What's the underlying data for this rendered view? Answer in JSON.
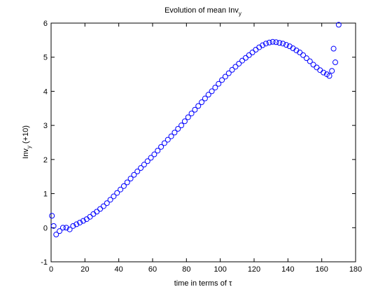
{
  "chart_data": {
    "type": "scatter",
    "title": "Evolution of mean Inv",
    "title_subscript": "y",
    "xlabel": "time in terms of τ",
    "ylabel": "Inv",
    "ylabel_subscript": "y",
    "ylabel_suffix": " (+10)",
    "marker_color": "#0000ff",
    "xlim": [
      0,
      180
    ],
    "xticks": [
      0,
      20,
      40,
      60,
      80,
      100,
      120,
      140,
      160,
      180
    ],
    "ylim": [
      -1,
      6
    ],
    "yticks": [
      -1,
      0,
      1,
      2,
      3,
      4,
      5,
      6
    ],
    "x": [
      0.5,
      1.5,
      3,
      5,
      7,
      9,
      11,
      13,
      15,
      17,
      19,
      21,
      23,
      25,
      27,
      29,
      31,
      33,
      35,
      37,
      39,
      41,
      43,
      45,
      47,
      49,
      51,
      53,
      55,
      57,
      59,
      61,
      63,
      65,
      67,
      69,
      71,
      73,
      75,
      77,
      79,
      81,
      83,
      85,
      87,
      89,
      91,
      93,
      95,
      97,
      99,
      101,
      103,
      105,
      107,
      109,
      111,
      113,
      115,
      117,
      119,
      121,
      123,
      125,
      127,
      129,
      131,
      133,
      135,
      137,
      139,
      141,
      143,
      145,
      147,
      149,
      151,
      153,
      155,
      157,
      159,
      161,
      163,
      164.5,
      166,
      167,
      168,
      170
    ],
    "values": [
      0.35,
      0.05,
      -0.2,
      -0.1,
      0.0,
      0.0,
      -0.05,
      0.05,
      0.1,
      0.15,
      0.2,
      0.25,
      0.32,
      0.4,
      0.47,
      0.55,
      0.63,
      0.72,
      0.82,
      0.92,
      1.02,
      1.12,
      1.22,
      1.33,
      1.44,
      1.55,
      1.65,
      1.75,
      1.85,
      1.95,
      2.05,
      2.15,
      2.26,
      2.37,
      2.48,
      2.58,
      2.68,
      2.79,
      2.9,
      3.0,
      3.12,
      3.24,
      3.35,
      3.46,
      3.57,
      3.68,
      3.79,
      3.9,
      4.0,
      4.11,
      4.22,
      4.33,
      4.43,
      4.53,
      4.63,
      4.72,
      4.81,
      4.9,
      4.98,
      5.06,
      5.14,
      5.22,
      5.29,
      5.35,
      5.4,
      5.43,
      5.45,
      5.44,
      5.42,
      5.4,
      5.36,
      5.32,
      5.26,
      5.2,
      5.14,
      5.06,
      4.97,
      4.88,
      4.78,
      4.7,
      4.62,
      4.55,
      4.5,
      4.45,
      4.6,
      5.25,
      4.85,
      5.95
    ]
  }
}
